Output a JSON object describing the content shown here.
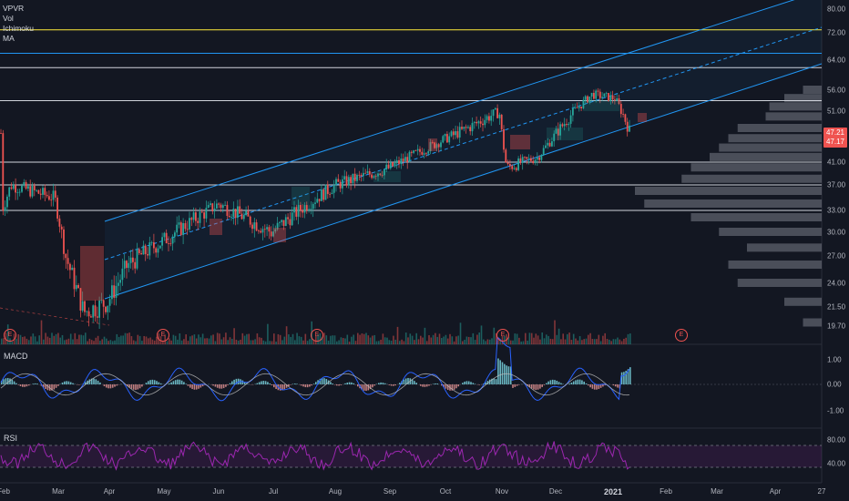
{
  "indicators": {
    "main": [
      "VPVR",
      "Vol",
      "Ichimoku",
      "MA"
    ],
    "macd_label": "MACD",
    "rsi_label": "RSI"
  },
  "price_axis": {
    "ticks": [
      "80.00",
      "72.00",
      "64.00",
      "56.00",
      "51.00",
      "47.21",
      "47.17",
      "41.00",
      "37.00",
      "33.00",
      "30.00",
      "27.00",
      "24.00",
      "21.50",
      "19.70"
    ],
    "current_price": "47.21",
    "prev_price": "47.17"
  },
  "macd_axis": [
    "1.00",
    "0.00",
    "-1.00"
  ],
  "rsi_axis": [
    "80.00",
    "40.00"
  ],
  "time_axis": [
    "Feb",
    "Mar",
    "Apr",
    "May",
    "Jun",
    "Jul",
    "Aug",
    "Sep",
    "Oct",
    "Nov",
    "Dec",
    "2021",
    "Feb",
    "Mar",
    "Apr",
    "27"
  ],
  "earnings_marker": "E",
  "colors": {
    "background": "#131722",
    "up": "#26a69a",
    "down": "#ef5350",
    "channel": "#2196f3",
    "rsi": "#9c27b0",
    "yellow_line": "#ffeb3b"
  },
  "chart_data": {
    "type": "candlestick",
    "symbol_price_range": [
      19.7,
      80
    ],
    "horizontal_levels": [
      73,
      66,
      62,
      53.5,
      41,
      37,
      33
    ],
    "channel": {
      "start": {
        "date": "Apr",
        "lower": 22.5,
        "upper": 31
      },
      "end": {
        "date": "Apr 2021",
        "lower": 60,
        "upper": 82
      }
    },
    "close_series": [
      {
        "x": "Feb",
        "y": 33
      },
      {
        "x": "Feb",
        "y": 37
      },
      {
        "x": "Mar",
        "y": 35
      },
      {
        "x": "Mar",
        "y": 27
      },
      {
        "x": "Mar",
        "y": 21
      },
      {
        "x": "Apr",
        "y": 22
      },
      {
        "x": "Apr",
        "y": 26
      },
      {
        "x": "May",
        "y": 29
      },
      {
        "x": "Jun",
        "y": 34
      },
      {
        "x": "Jul",
        "y": 30
      },
      {
        "x": "Aug",
        "y": 37
      },
      {
        "x": "Sep",
        "y": 40
      },
      {
        "x": "Oct",
        "y": 46
      },
      {
        "x": "Oct",
        "y": 51
      },
      {
        "x": "Nov",
        "y": 40
      },
      {
        "x": "Nov",
        "y": 42
      },
      {
        "x": "Dec",
        "y": 47
      },
      {
        "x": "Dec",
        "y": 55
      },
      {
        "x": "2021",
        "y": 54
      },
      {
        "x": "2021",
        "y": 47.2
      }
    ],
    "volume_profile_levels": [
      56,
      54,
      52,
      50,
      48,
      46,
      44,
      42,
      40,
      38,
      36,
      34,
      32,
      30,
      28,
      26,
      24,
      22,
      20
    ],
    "volume_profile_values": [
      0.1,
      0.2,
      0.28,
      0.3,
      0.45,
      0.5,
      0.55,
      0.6,
      0.7,
      0.75,
      1.0,
      0.95,
      0.7,
      0.55,
      0.4,
      0.5,
      0.45,
      0.2,
      0.1
    ],
    "macd_range": [
      -1.5,
      1.5
    ],
    "rsi_range": [
      20,
      100
    ],
    "rsi_bands": [
      70,
      35
    ]
  }
}
